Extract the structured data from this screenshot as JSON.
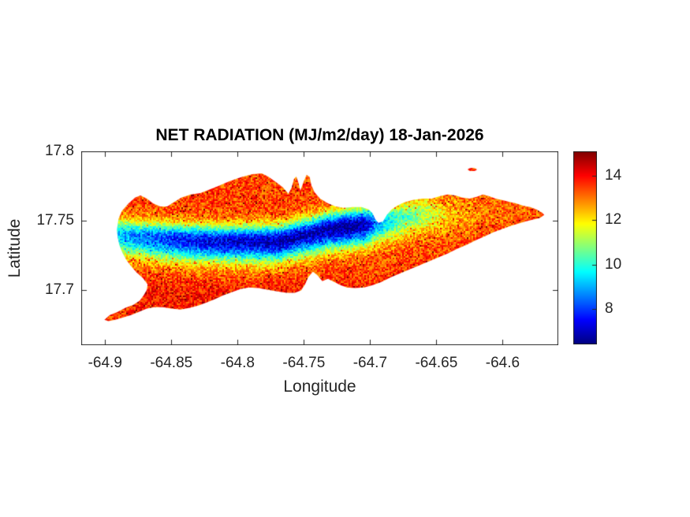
{
  "chart_data": {
    "type": "heatmap",
    "title": "NET RADIATION (MJ/m2/day) 18-Jan-2026",
    "xlabel": "Longitude",
    "ylabel": "Latitude",
    "xlim": [
      -64.918,
      -64.558
    ],
    "ylim": [
      17.66,
      17.8
    ],
    "xticks": [
      -64.9,
      -64.85,
      -64.8,
      -64.75,
      -64.7,
      -64.65,
      -64.6
    ],
    "xtick_labels": [
      "-64.9",
      "-64.85",
      "-64.8",
      "-64.75",
      "-64.7",
      "-64.65",
      "-64.6"
    ],
    "yticks": [
      17.7,
      17.75,
      17.8
    ],
    "ytick_labels": [
      "17.7",
      "17.75",
      "17.8"
    ],
    "grid": false,
    "background_color": "#ffffff",
    "axes_color": "#262626",
    "colormap": "jet",
    "colorbar": {
      "position": "right",
      "range": [
        6.4,
        15.1
      ],
      "ticks": [
        8,
        10,
        12,
        14
      ],
      "tick_labels": [
        "8",
        "10",
        "12",
        "14"
      ]
    },
    "units": "MJ/m2/day",
    "sample_values": {
      "note": "representative net-radiation readings (MJ/m2/day) at lon x lat grid, null = ocean",
      "lons": [
        -64.9,
        -64.85,
        -64.8,
        -64.75,
        -64.7,
        -64.65,
        -64.6
      ],
      "lats": [
        17.76,
        17.75,
        17.74,
        17.73,
        17.71
      ],
      "values": [
        [
          null,
          12.8,
          13.6,
          12.2,
          11.0,
          12.8,
          13.6
        ],
        [
          null,
          10.2,
          10.0,
          9.0,
          9.8,
          10.8,
          13.4
        ],
        [
          10.5,
          8.8,
          7.8,
          7.2,
          11.5,
          13.2,
          13.6
        ],
        [
          11.5,
          10.8,
          10.2,
          11.8,
          13.4,
          13.6,
          null
        ],
        [
          13.4,
          13.6,
          13.3,
          13.5,
          13.8,
          null,
          null
        ]
      ]
    },
    "island_outline": [
      [
        -64.8911,
        17.7432
      ],
      [
        -64.8899,
        17.7511
      ],
      [
        -64.8875,
        17.7568
      ],
      [
        -64.8822,
        17.7625
      ],
      [
        -64.8774,
        17.7665
      ],
      [
        -64.8733,
        17.7682
      ],
      [
        -64.8685,
        17.7659
      ],
      [
        -64.8638,
        17.7625
      ],
      [
        -64.8584,
        17.7602
      ],
      [
        -64.8531,
        17.7602
      ],
      [
        -64.8483,
        17.7631
      ],
      [
        -64.8424,
        17.7665
      ],
      [
        -64.8353,
        17.7688
      ],
      [
        -64.8281,
        17.7699
      ],
      [
        -64.8216,
        17.7722
      ],
      [
        -64.8145,
        17.775
      ],
      [
        -64.8062,
        17.7784
      ],
      [
        -64.7972,
        17.7813
      ],
      [
        -64.7889,
        17.7835
      ],
      [
        -64.7818,
        17.7841
      ],
      [
        -64.777,
        17.7818
      ],
      [
        -64.7711,
        17.7778
      ],
      [
        -64.7658,
        17.7739
      ],
      [
        -64.7616,
        17.7693
      ],
      [
        -64.7592,
        17.7739
      ],
      [
        -64.7574,
        17.7801
      ],
      [
        -64.7557,
        17.7818
      ],
      [
        -64.7539,
        17.7767
      ],
      [
        -64.7527,
        17.7716
      ],
      [
        -64.7503,
        17.7778
      ],
      [
        -64.7479,
        17.783
      ],
      [
        -64.7456,
        17.7813
      ],
      [
        -64.7444,
        17.7756
      ],
      [
        -64.742,
        17.7705
      ],
      [
        -64.7378,
        17.7659
      ],
      [
        -64.7319,
        17.7625
      ],
      [
        -64.726,
        17.7602
      ],
      [
        -64.72,
        17.7591
      ],
      [
        -64.7129,
        17.7597
      ],
      [
        -64.7064,
        17.7597
      ],
      [
        -64.701,
        17.758
      ],
      [
        -64.698,
        17.7551
      ],
      [
        -64.6963,
        17.7512
      ],
      [
        -64.6939,
        17.7483
      ],
      [
        -64.6903,
        17.7494
      ],
      [
        -64.6874,
        17.754
      ],
      [
        -64.6838,
        17.758
      ],
      [
        -64.6796,
        17.7608
      ],
      [
        -64.6743,
        17.7631
      ],
      [
        -64.6678,
        17.7648
      ],
      [
        -64.6606,
        17.7659
      ],
      [
        -64.6535,
        17.7659
      ],
      [
        -64.6476,
        17.7676
      ],
      [
        -64.6416,
        17.7688
      ],
      [
        -64.6357,
        17.7682
      ],
      [
        -64.6303,
        17.7665
      ],
      [
        -64.625,
        17.7659
      ],
      [
        -64.6196,
        17.7671
      ],
      [
        -64.6149,
        17.7688
      ],
      [
        -64.6101,
        17.7676
      ],
      [
        -64.6054,
        17.7659
      ],
      [
        -64.6006,
        17.7648
      ],
      [
        -64.5953,
        17.7636
      ],
      [
        -64.5899,
        17.7625
      ],
      [
        -64.5846,
        17.7608
      ],
      [
        -64.5792,
        17.7597
      ],
      [
        -64.5745,
        17.758
      ],
      [
        -64.5703,
        17.7557
      ],
      [
        -64.5686,
        17.754
      ],
      [
        -64.5721,
        17.7517
      ],
      [
        -64.5774,
        17.7506
      ],
      [
        -64.5828,
        17.7494
      ],
      [
        -64.5887,
        17.7477
      ],
      [
        -64.5946,
        17.746
      ],
      [
        -64.6006,
        17.7438
      ],
      [
        -64.6071,
        17.7415
      ],
      [
        -64.6137,
        17.7386
      ],
      [
        -64.6202,
        17.7358
      ],
      [
        -64.6273,
        17.7324
      ],
      [
        -64.6344,
        17.7296
      ],
      [
        -64.6416,
        17.7262
      ],
      [
        -64.6487,
        17.7233
      ],
      [
        -64.6558,
        17.7205
      ],
      [
        -64.6629,
        17.7176
      ],
      [
        -64.6701,
        17.7148
      ],
      [
        -64.6772,
        17.712
      ],
      [
        -64.6843,
        17.7091
      ],
      [
        -64.6914,
        17.7057
      ],
      [
        -64.698,
        17.7034
      ],
      [
        -64.7045,
        17.7017
      ],
      [
        -64.7117,
        17.7012
      ],
      [
        -64.7176,
        17.7017
      ],
      [
        -64.7224,
        17.7034
      ],
      [
        -64.7271,
        17.7057
      ],
      [
        -64.7319,
        17.708
      ],
      [
        -64.7361,
        17.7063
      ],
      [
        -64.7396,
        17.7103
      ],
      [
        -64.7432,
        17.7131
      ],
      [
        -64.7467,
        17.7091
      ],
      [
        -64.7491,
        17.704
      ],
      [
        -64.7521,
        17.6995
      ],
      [
        -64.7568,
        17.6978
      ],
      [
        -64.7634,
        17.6978
      ],
      [
        -64.7699,
        17.6989
      ],
      [
        -64.777,
        17.7
      ],
      [
        -64.7842,
        17.7012
      ],
      [
        -64.7913,
        17.7017
      ],
      [
        -64.7978,
        17.7006
      ],
      [
        -64.8044,
        17.6983
      ],
      [
        -64.8109,
        17.696
      ],
      [
        -64.8174,
        17.6932
      ],
      [
        -64.8233,
        17.6909
      ],
      [
        -64.8293,
        17.6887
      ],
      [
        -64.8358,
        17.687
      ],
      [
        -64.843,
        17.6858
      ],
      [
        -64.8501,
        17.6864
      ],
      [
        -64.8566,
        17.6875
      ],
      [
        -64.8626,
        17.6875
      ],
      [
        -64.8685,
        17.6864
      ],
      [
        -64.8745,
        17.6841
      ],
      [
        -64.8804,
        17.6818
      ],
      [
        -64.8863,
        17.6801
      ],
      [
        -64.8923,
        17.6784
      ],
      [
        -64.8976,
        17.6773
      ],
      [
        -64.9005,
        17.6784
      ],
      [
        -64.8964,
        17.6818
      ],
      [
        -64.8905,
        17.6841
      ],
      [
        -64.8846,
        17.687
      ],
      [
        -64.8786,
        17.6892
      ],
      [
        -64.8739,
        17.6921
      ],
      [
        -64.8709,
        17.696
      ],
      [
        -64.8685,
        17.7
      ],
      [
        -64.8679,
        17.704
      ],
      [
        -64.8715,
        17.7085
      ],
      [
        -64.8762,
        17.7125
      ],
      [
        -64.8804,
        17.7171
      ],
      [
        -64.884,
        17.7216
      ],
      [
        -64.8869,
        17.7267
      ],
      [
        -64.8893,
        17.7324
      ],
      [
        -64.8905,
        17.7381
      ]
    ],
    "islets": [
      {
        "cx": -64.6229,
        "cy": 17.7869,
        "rx": 0.0034,
        "ry": 0.0011,
        "value": 13.6
      }
    ],
    "field_model": {
      "base_value": 13.4,
      "south_rim_boost": 0.45,
      "south_rim_lat": 17.695,
      "south_rim_sigma": 0.012,
      "band_sigma_north": 0.011,
      "band_sigma_south": 0.0145,
      "band_center_profile": [
        [
          -64.918,
          17.742
        ],
        [
          -64.86,
          17.737
        ],
        [
          -64.82,
          17.735
        ],
        [
          -64.77,
          17.735
        ],
        [
          -64.73,
          17.744
        ],
        [
          -64.7,
          17.748
        ],
        [
          -64.66,
          17.755
        ],
        [
          -64.558,
          17.757
        ]
      ],
      "band_depth_profile": [
        [
          -64.918,
          3.2
        ],
        [
          -64.88,
          4.6
        ],
        [
          -64.84,
          5.8
        ],
        [
          -64.8,
          6.2
        ],
        [
          -64.77,
          6.6
        ],
        [
          -64.745,
          6.4
        ],
        [
          -64.72,
          7.0
        ],
        [
          -64.705,
          6.6
        ],
        [
          -64.695,
          4.8
        ],
        [
          -64.68,
          3.4
        ],
        [
          -64.66,
          2.4
        ],
        [
          -64.64,
          1.2
        ],
        [
          -64.615,
          0.4
        ],
        [
          -64.558,
          0.1
        ]
      ],
      "noise_amplitude": 0.85,
      "hot_speckle_chance": 0.055,
      "hot_speckle_boost": 1.4,
      "cold_speckle_chance": 0.03,
      "cold_speckle_drop": 0.8,
      "seed": 42
    }
  }
}
